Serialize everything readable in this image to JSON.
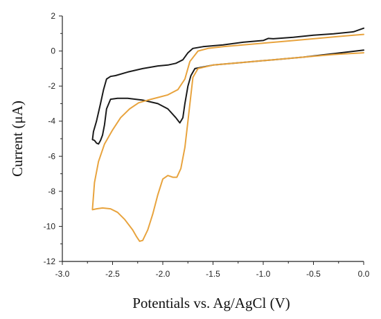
{
  "chart_data": {
    "type": "line",
    "title": "",
    "xlabel": "Potentials vs. Ag/AgCl (V)",
    "ylabel": "Current (μA)",
    "xlim": [
      -3.0,
      0.0
    ],
    "ylim": [
      -12,
      2
    ],
    "grid": false,
    "xticks": [
      -3.0,
      -2.5,
      -2.0,
      -1.5,
      -1.0,
      -0.5,
      0.0
    ],
    "xtick_labels": [
      "-3.0",
      "-2.5",
      "-2.0",
      "-1.5",
      "-1.0",
      "-0.5",
      "0.0"
    ],
    "yticks": [
      2,
      0,
      -2,
      -4,
      -6,
      -8,
      -10,
      -12
    ],
    "ytick_labels": [
      "2",
      "0",
      "-2",
      "-4",
      "-6",
      "-8",
      "-10",
      "-12"
    ],
    "series": [
      {
        "color": "#1a1a1a",
        "x": [
          0.0,
          -0.3,
          -0.6,
          -0.9,
          -1.2,
          -1.5,
          -1.68,
          -1.72,
          -1.75,
          -1.78,
          -1.8,
          -1.83,
          -1.87,
          -1.95,
          -2.05,
          -2.2,
          -2.35,
          -2.45,
          -2.52,
          -2.56,
          -2.58,
          -2.6,
          -2.62,
          -2.64,
          -2.66,
          -2.68,
          -2.7,
          -2.69,
          -2.66,
          -2.62,
          -2.59,
          -2.56,
          -2.52,
          -2.47,
          -2.35,
          -2.2,
          -2.05,
          -1.95,
          -1.87,
          -1.8,
          -1.75,
          -1.7,
          -1.6,
          -1.4,
          -1.2,
          -1.0,
          -0.95,
          -0.9,
          -0.7,
          -0.5,
          -0.3,
          -0.1,
          0.0
        ],
        "y": [
          0.05,
          -0.15,
          -0.35,
          -0.5,
          -0.65,
          -0.8,
          -1.0,
          -1.4,
          -2.0,
          -3.0,
          -3.8,
          -4.1,
          -3.8,
          -3.3,
          -3.0,
          -2.8,
          -2.7,
          -2.7,
          -2.75,
          -3.3,
          -4.2,
          -4.8,
          -5.1,
          -5.3,
          -5.25,
          -5.1,
          -5.05,
          -4.6,
          -4.0,
          -3.0,
          -2.2,
          -1.6,
          -1.45,
          -1.4,
          -1.2,
          -1.0,
          -0.85,
          -0.8,
          -0.7,
          -0.5,
          -0.1,
          0.15,
          0.25,
          0.35,
          0.5,
          0.6,
          0.72,
          0.7,
          0.78,
          0.9,
          0.98,
          1.1,
          1.3
        ]
      },
      {
        "color": "#e8a33d",
        "x": [
          0.0,
          -0.3,
          -0.6,
          -0.9,
          -1.2,
          -1.5,
          -1.65,
          -1.7,
          -1.72,
          -1.75,
          -1.78,
          -1.82,
          -1.86,
          -1.9,
          -1.95,
          -2.0,
          -2.05,
          -2.1,
          -2.15,
          -2.2,
          -2.23,
          -2.26,
          -2.3,
          -2.38,
          -2.45,
          -2.52,
          -2.6,
          -2.66,
          -2.7,
          -2.7,
          -2.68,
          -2.64,
          -2.58,
          -2.5,
          -2.42,
          -2.33,
          -2.24,
          -2.15,
          -2.05,
          -1.95,
          -1.85,
          -1.78,
          -1.73,
          -1.65,
          -1.55,
          -1.4,
          -1.2,
          -1.0,
          -0.8,
          -0.5,
          -0.3,
          -0.1,
          0.0
        ],
        "y": [
          -0.1,
          -0.2,
          -0.35,
          -0.5,
          -0.65,
          -0.8,
          -1.0,
          -1.5,
          -2.5,
          -4.0,
          -5.5,
          -6.7,
          -7.2,
          -7.2,
          -7.1,
          -7.3,
          -8.2,
          -9.3,
          -10.2,
          -10.8,
          -10.85,
          -10.6,
          -10.2,
          -9.6,
          -9.2,
          -9.0,
          -8.95,
          -9.0,
          -9.05,
          -9.0,
          -7.5,
          -6.3,
          -5.3,
          -4.5,
          -3.8,
          -3.3,
          -2.95,
          -2.8,
          -2.65,
          -2.5,
          -2.2,
          -1.6,
          -0.6,
          0.0,
          0.15,
          0.25,
          0.35,
          0.45,
          0.55,
          0.7,
          0.8,
          0.9,
          0.95
        ]
      }
    ]
  }
}
